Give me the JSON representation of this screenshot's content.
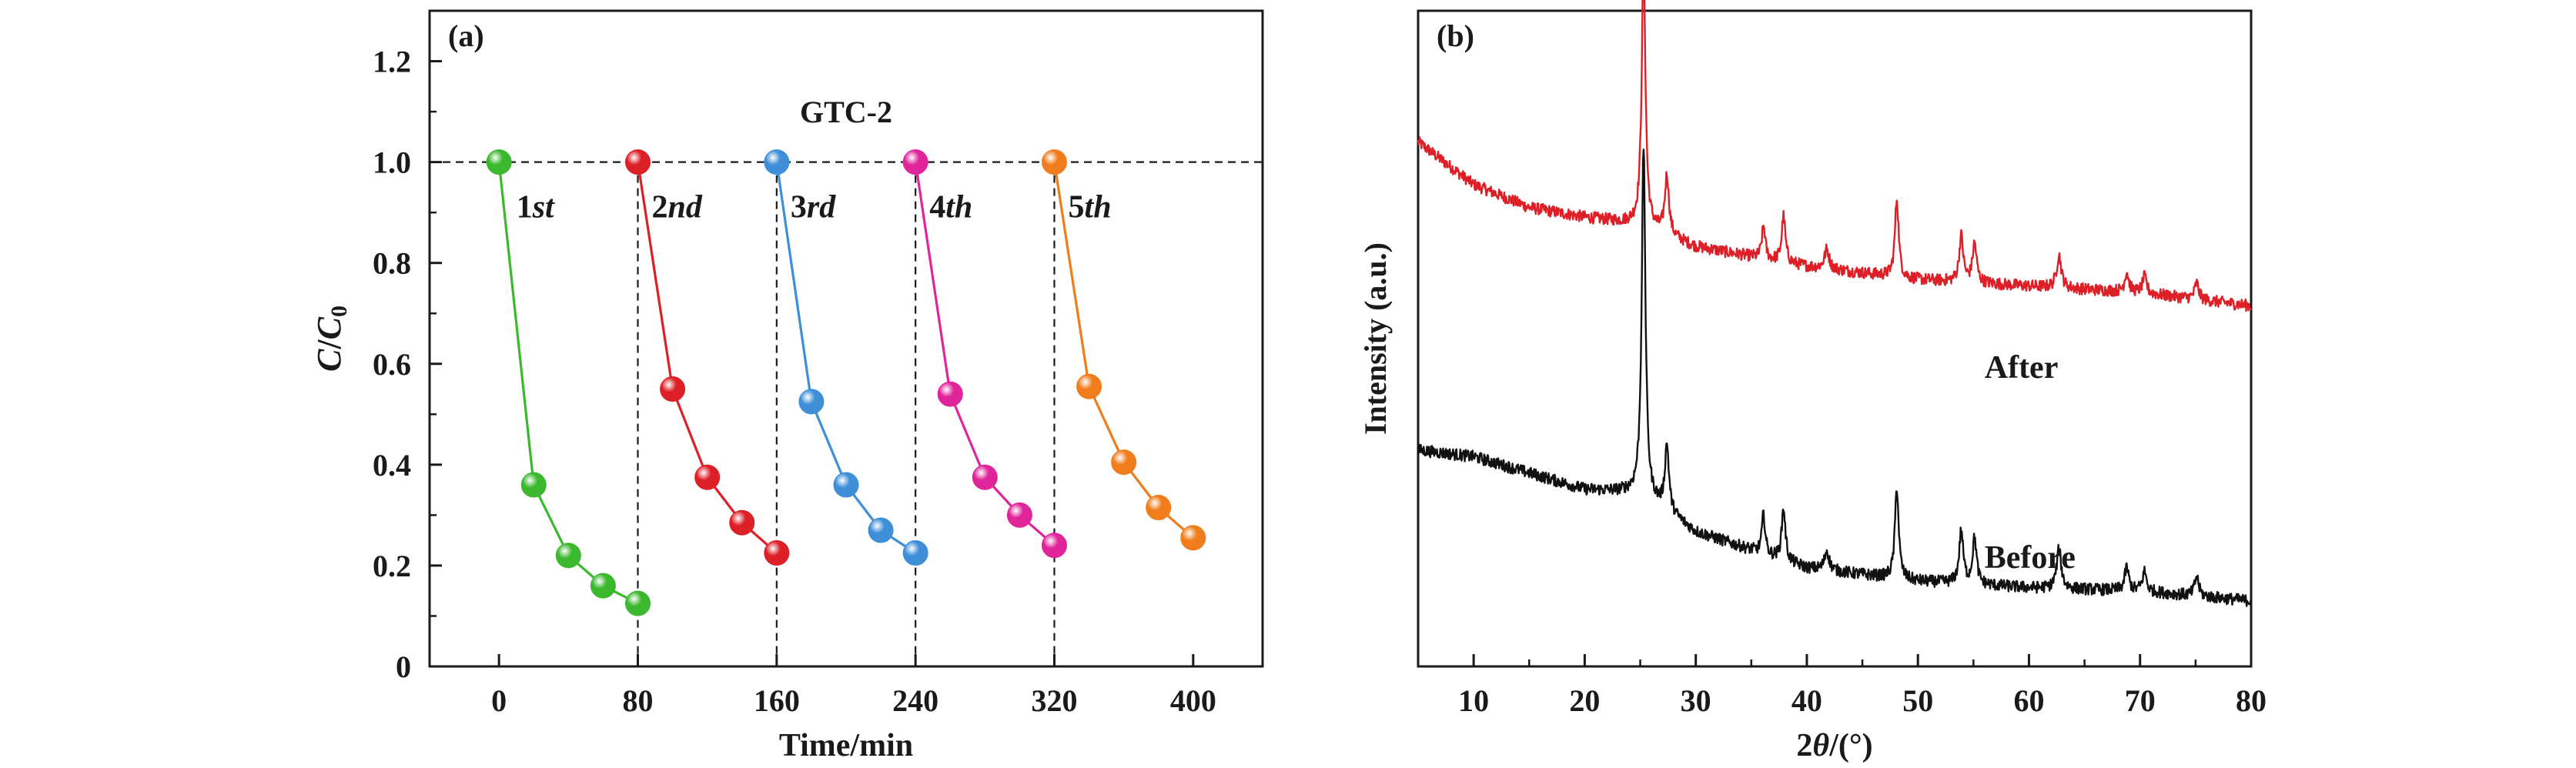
{
  "chart_data": [
    {
      "panel_label": "(a)",
      "type": "line",
      "title": "GTC-2",
      "xlabel": "Time/min",
      "ylabel_italic_1": "C",
      "ylabel_sep": "/",
      "ylabel_italic_2": "C",
      "ylabel_sub": "0",
      "xlim": [
        -40,
        440
      ],
      "ylim": [
        0,
        1.3
      ],
      "xticks": [
        0,
        80,
        160,
        240,
        320,
        400
      ],
      "yticks": [
        0,
        0.2,
        0.4,
        0.6,
        0.8,
        1.0,
        1.2
      ],
      "yticklabels": [
        "0",
        "0.2",
        "0.4",
        "0.6",
        "0.8",
        "1.0",
        "1.2"
      ],
      "reference_line_y": 1.0,
      "cycle_dividers_x": [
        80,
        160,
        240,
        320
      ],
      "series": [
        {
          "label_num": "1",
          "label_suffix": "st",
          "color": "#3cb82e",
          "label_at": [
            10,
            0.89
          ],
          "points": [
            [
              0,
              1.0
            ],
            [
              20,
              0.36
            ],
            [
              40,
              0.22
            ],
            [
              60,
              0.16
            ],
            [
              80,
              0.125
            ]
          ]
        },
        {
          "label_num": "2",
          "label_suffix": "nd",
          "color": "#dd2027",
          "label_at": [
            88,
            0.89
          ],
          "points": [
            [
              80,
              1.0
            ],
            [
              100,
              0.55
            ],
            [
              120,
              0.375
            ],
            [
              140,
              0.285
            ],
            [
              160,
              0.225
            ]
          ]
        },
        {
          "label_num": "3",
          "label_suffix": "rd",
          "color": "#3f8fd8",
          "label_at": [
            168,
            0.89
          ],
          "points": [
            [
              160,
              1.0
            ],
            [
              180,
              0.525
            ],
            [
              200,
              0.36
            ],
            [
              220,
              0.27
            ],
            [
              240,
              0.225
            ]
          ]
        },
        {
          "label_num": "4",
          "label_suffix": "th",
          "color": "#e0249a",
          "label_at": [
            248,
            0.89
          ],
          "points": [
            [
              240,
              1.0
            ],
            [
              260,
              0.54
            ],
            [
              280,
              0.375
            ],
            [
              300,
              0.3
            ],
            [
              320,
              0.24
            ]
          ]
        },
        {
          "label_num": "5",
          "label_suffix": "th",
          "color": "#f07c1b",
          "label_at": [
            328,
            0.89
          ],
          "points": [
            [
              320,
              1.0
            ],
            [
              340,
              0.555
            ],
            [
              360,
              0.405
            ],
            [
              380,
              0.315
            ],
            [
              400,
              0.255
            ]
          ]
        }
      ]
    },
    {
      "panel_label": "(b)",
      "type": "line",
      "xlabel_num": "2",
      "xlabel_theta": "θ",
      "xlabel_unit": "/(°)",
      "ylabel": "Intensity (a.u.)",
      "xlim": [
        5,
        80
      ],
      "xticks": [
        10,
        20,
        30,
        40,
        50,
        60,
        70,
        80
      ],
      "yticks_shown": false,
      "series": [
        {
          "name": "After",
          "color": "#dd2027",
          "label_at": [
            56,
            0.44
          ],
          "baseline": [
            [
              5,
              0.8
            ],
            [
              10,
              0.735
            ],
            [
              15,
              0.7
            ],
            [
              20,
              0.685
            ],
            [
              25,
              0.675
            ],
            [
              30,
              0.64
            ],
            [
              40,
              0.61
            ],
            [
              50,
              0.59
            ],
            [
              60,
              0.58
            ],
            [
              70,
              0.57
            ],
            [
              80,
              0.55
            ]
          ],
          "peaks": [
            [
              25.3,
              0.4,
              0.2
            ],
            [
              27.4,
              0.09,
              0.22
            ],
            [
              36.1,
              0.05,
              0.18
            ],
            [
              37.9,
              0.07,
              0.2
            ],
            [
              41.8,
              0.03,
              0.25
            ],
            [
              48.1,
              0.12,
              0.2
            ],
            [
              53.9,
              0.07,
              0.22
            ],
            [
              55.1,
              0.06,
              0.22
            ],
            [
              62.7,
              0.05,
              0.25
            ],
            [
              68.8,
              0.03,
              0.22
            ],
            [
              70.4,
              0.025,
              0.22
            ],
            [
              75.1,
              0.025,
              0.22
            ]
          ]
        },
        {
          "name": "Before",
          "color": "#111111",
          "label_at": [
            56,
            0.15
          ],
          "baseline": [
            [
              5,
              0.33
            ],
            [
              10,
              0.32
            ],
            [
              15,
              0.295
            ],
            [
              20,
              0.27
            ],
            [
              25,
              0.265
            ],
            [
              30,
              0.205
            ],
            [
              40,
              0.15
            ],
            [
              50,
              0.13
            ],
            [
              60,
              0.12
            ],
            [
              70,
              0.115
            ],
            [
              80,
              0.1
            ]
          ],
          "peaks": [
            [
              25.3,
              0.53,
              0.2
            ],
            [
              27.4,
              0.1,
              0.22
            ],
            [
              36.1,
              0.06,
              0.18
            ],
            [
              37.9,
              0.08,
              0.2
            ],
            [
              41.8,
              0.03,
              0.25
            ],
            [
              48.1,
              0.14,
              0.2
            ],
            [
              53.9,
              0.08,
              0.22
            ],
            [
              55.1,
              0.07,
              0.22
            ],
            [
              62.7,
              0.06,
              0.25
            ],
            [
              68.8,
              0.035,
              0.22
            ],
            [
              70.4,
              0.03,
              0.22
            ],
            [
              75.1,
              0.03,
              0.22
            ]
          ]
        }
      ]
    }
  ]
}
